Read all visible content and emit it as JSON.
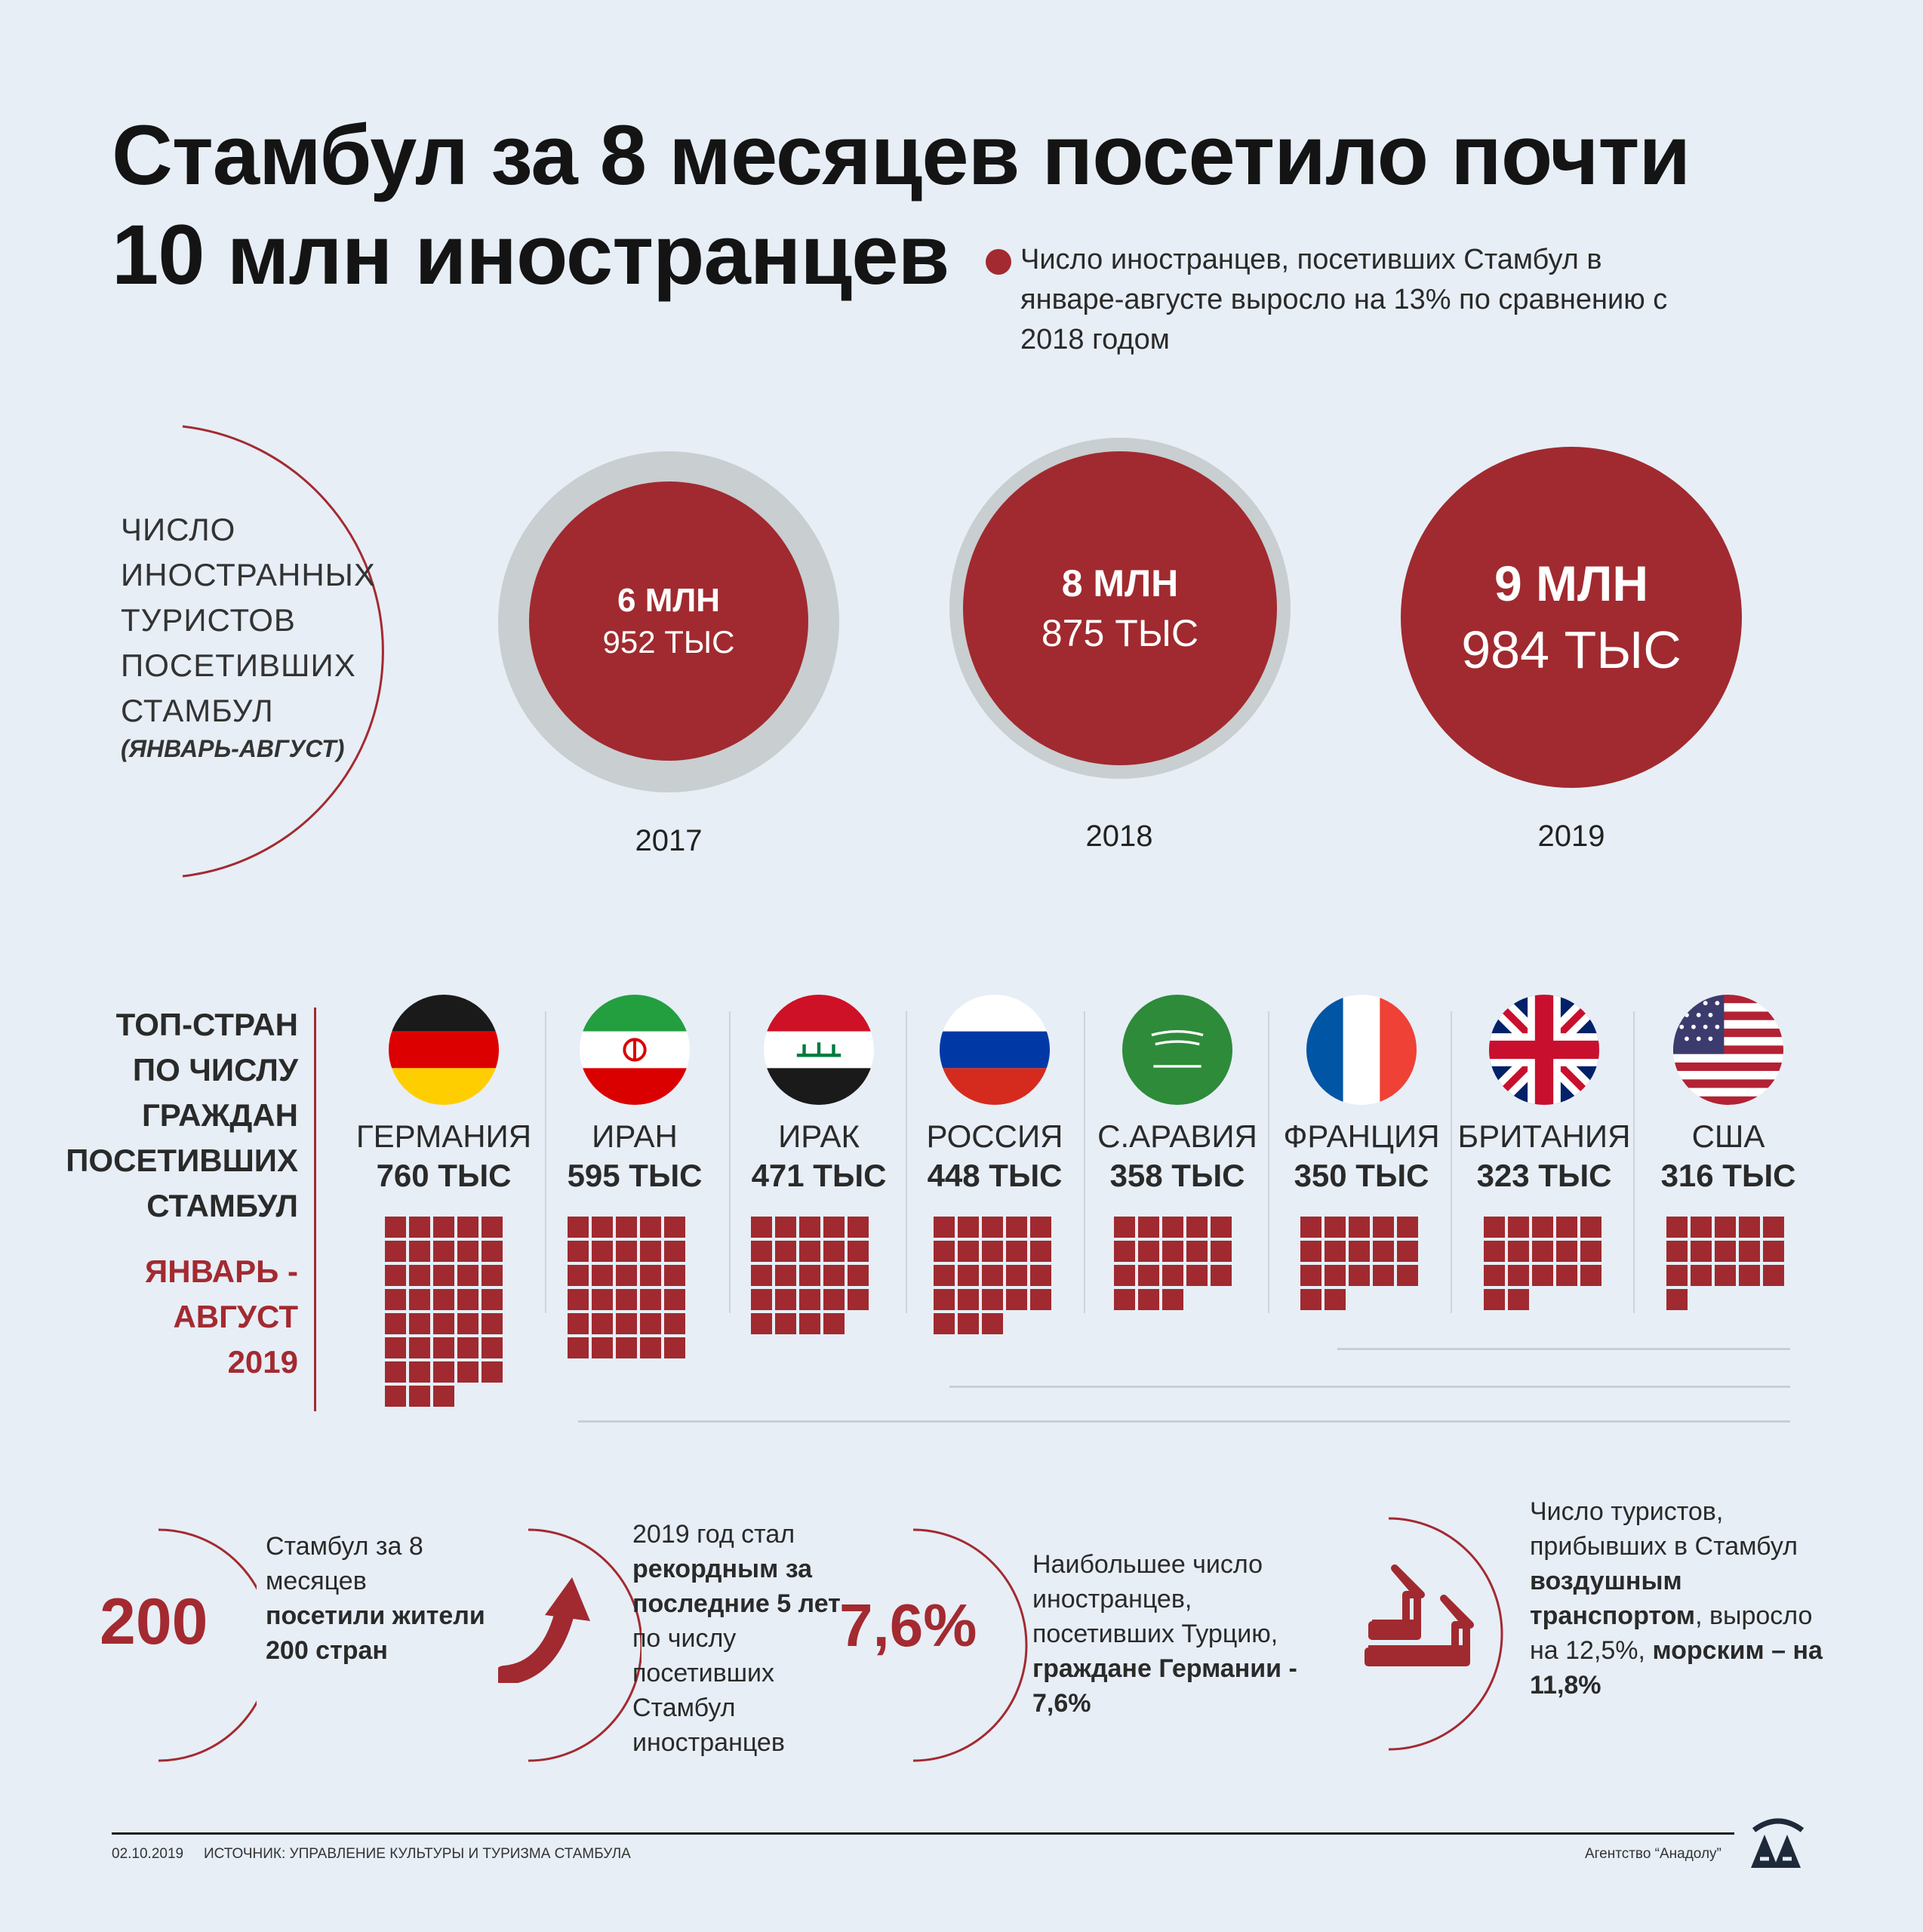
{
  "title_line1": "Стамбул за 8 месяцев посетило почти",
  "title_line2": "10 млн иностранцев",
  "note": "Число иностранцев, посетивших Стамбул в январе-августе выросло на 13% по сравнению с 2018 годом",
  "stat_label_lines": [
    "ЧИСЛО",
    "ИНОСТРАННЫХ",
    "ТУРИСТОВ",
    "ПОСЕТИВШИХ",
    "СТАМБУЛ"
  ],
  "stat_period": "(ЯНВАРЬ-АВГУСТ)",
  "years": [
    {
      "year": "2017",
      "main": "6 МЛН",
      "sub": "952 ТЫС",
      "total": 6952000
    },
    {
      "year": "2018",
      "main": "8 МЛН",
      "sub": "875 ТЫС",
      "total": 8875000
    },
    {
      "year": "2019",
      "main": "9 МЛН",
      "sub": "984 ТЫС",
      "total": 9984000
    }
  ],
  "top_label_lines": [
    "ТОП-СТРАН",
    "ПО ЧИСЛУ",
    "ГРАЖДАН",
    "ПОСЕТИВШИХ",
    "СТАМБУЛ"
  ],
  "top_period_lines": [
    "ЯНВАРЬ -",
    "АВГУСТ",
    "2019"
  ],
  "countries": [
    {
      "name": "ГЕРМАНИЯ",
      "value": "760 ТЫС",
      "flag": "germany-flag-icon",
      "squares": 38
    },
    {
      "name": "ИРАН",
      "value": "595 ТЫС",
      "flag": "iran-flag-icon",
      "squares": 30
    },
    {
      "name": "ИРАК",
      "value": "471 ТЫС",
      "flag": "iraq-flag-icon",
      "squares": 24
    },
    {
      "name": "РОССИЯ",
      "value": "448 ТЫС",
      "flag": "russia-flag-icon",
      "squares": 23
    },
    {
      "name": "С.АРАВИЯ",
      "value": "358 ТЫС",
      "flag": "saudi-arabia-flag-icon",
      "squares": 18
    },
    {
      "name": "ФРАНЦИЯ",
      "value": "350 ТЫС",
      "flag": "france-flag-icon",
      "squares": 17
    },
    {
      "name": "БРИТАНИЯ",
      "value": "323 ТЫС",
      "flag": "uk-flag-icon",
      "squares": 17
    },
    {
      "name": "США",
      "value": "316 ТЫС",
      "flag": "usa-flag-icon",
      "squares": 16
    }
  ],
  "facts": {
    "f1_big": "200",
    "f1_text_a": "Стамбул за  8 месяцев ",
    "f1_text_b": "посетили жители 200 стран",
    "f2_text_a": "2019 год стал ",
    "f2_text_b": "рекордным за последние 5 лет",
    "f2_text_c": " по числу посетивших Стамбул иностранцев",
    "f3_big": "7,6%",
    "f3_text_a": "Наибольшее число иностранцев, посетивших Турцию, ",
    "f3_text_b": "граждане Германии - 7,6%",
    "f4_text_a": "Число туристов, прибывших в Стамбул ",
    "f4_text_b": "воздушным транспортом",
    "f4_text_c": ", выросло на 12,5%, ",
    "f4_text_d": "морским – на 11,8%"
  },
  "footer": {
    "date": "02.10.2019",
    "source": "ИСТОЧНИК: УПРАВЛЕНИЕ КУЛЬТУРЫ И ТУРИЗМА СТАМБУЛА",
    "agency": "Агентство “Анадолу”"
  },
  "colors": {
    "accent": "#a02a2f",
    "background": "#e7eef6",
    "ring": "#c9ced1"
  }
}
